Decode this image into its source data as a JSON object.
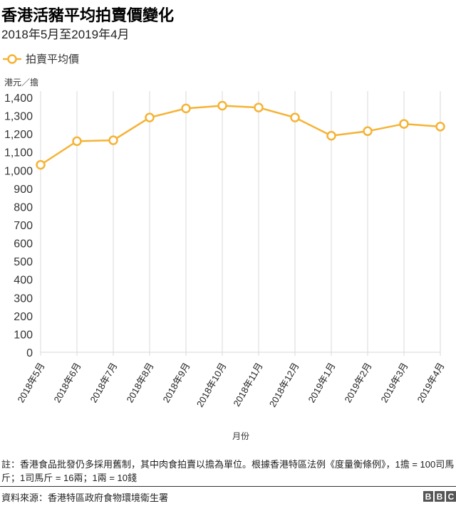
{
  "title": "香港活豬平均拍賣價變化",
  "subtitle": "2018年5月至2019年4月",
  "legend": {
    "label": "拍賣平均價",
    "icon": "circle-line-marker-icon"
  },
  "y_axis_label": "港元／擔",
  "x_axis_label": "月份",
  "note": "註：香港食品批發仍多採用舊制，其中肉食拍賣以擔為單位。根據香港特區法例《度量衡條例》，1擔 = 100司馬斤；1司馬斤 = 16兩；1兩 = 10錢",
  "source": "資料來源：香港特區政府食物環境衛生署",
  "logo": [
    "B",
    "B",
    "C"
  ],
  "colors": {
    "line": "#f5b335",
    "grid": "#d8d8d8",
    "text": "#333333"
  },
  "chart_data": {
    "type": "line",
    "title": "香港活豬平均拍賣價變化",
    "subtitle": "2018年5月至2019年4月",
    "xlabel": "月份",
    "ylabel": "港元／擔",
    "categories": [
      "2018年5月",
      "2018年6月",
      "2018年7月",
      "2018年8月",
      "2018年9月",
      "2018年10月",
      "2018年11月",
      "2018年12月",
      "2019年1月",
      "2019年2月",
      "2019年3月",
      "2019年4月"
    ],
    "series": [
      {
        "name": "拍賣平均價",
        "values": [
          1030,
          1160,
          1165,
          1290,
          1340,
          1355,
          1345,
          1290,
          1190,
          1215,
          1255,
          1240
        ]
      }
    ],
    "ylim": [
      0,
      1400
    ],
    "yticks": [
      0,
      100,
      200,
      300,
      400,
      500,
      600,
      700,
      800,
      900,
      1000,
      1100,
      1200,
      1300,
      1400
    ],
    "ytick_labels": [
      "0",
      "100",
      "200",
      "300",
      "400",
      "500",
      "600",
      "700",
      "800",
      "900",
      "1,000",
      "1,100",
      "1,200",
      "1,300",
      "1,400"
    ],
    "grid": "vertical",
    "legend_position": "top-left"
  }
}
